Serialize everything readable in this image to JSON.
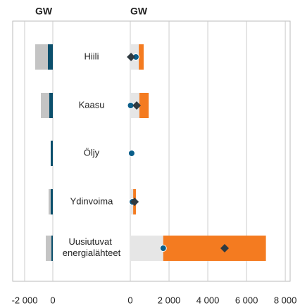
{
  "chart_data": [
    {
      "type": "bar",
      "title": "GW",
      "categories": [
        "Hiili",
        "Kaasu",
        "Öljy",
        "Ydinvoima",
        "Uusiutuvat energialähteet"
      ],
      "series": [
        {
          "color": "#c4c4c4",
          "values": [
            -1250,
            -850,
            -150,
            -300,
            -500
          ]
        },
        {
          "color": "#0b4f6c",
          "values": [
            -350,
            -250,
            -150,
            -150,
            -100
          ]
        }
      ],
      "xlim": [
        -2850,
        0
      ],
      "xticks": [
        {
          "value": -2000,
          "label": "-2 000"
        },
        0
      ]
    },
    {
      "type": "range",
      "title": "GW",
      "series": [
        {
          "kind": "bar",
          "color": "#f47b20",
          "values": [
            690,
            950,
            null,
            290,
            7000
          ]
        },
        {
          "kind": "bar",
          "color": "#e6e6e6",
          "values": [
            440,
            470,
            null,
            150,
            1700
          ]
        },
        {
          "kind": "dot",
          "color": "#0a5e8a",
          "values": [
            290,
            20,
            70,
            110,
            1700
          ]
        },
        {
          "kind": "diamond",
          "color": "#2f3a40",
          "values": [
            40,
            330,
            null,
            220,
            4870
          ]
        }
      ],
      "xlim": [
        0,
        8250
      ],
      "xticks": [
        0,
        {
          "value": 2000,
          "label": "2 000"
        },
        {
          "value": 4000,
          "label": "4 000"
        },
        {
          "value": 6000,
          "label": "6 000"
        },
        {
          "value": 8000,
          "label": "8 000"
        }
      ]
    }
  ]
}
